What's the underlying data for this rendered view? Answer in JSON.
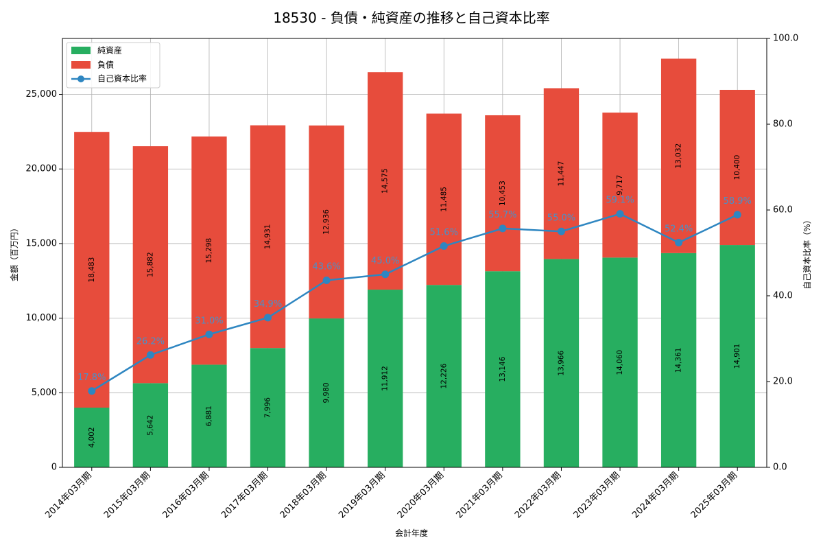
{
  "chart_data": {
    "type": "bar",
    "title": "18530 - 負債・純資産の推移と自己資本比率",
    "xlabel": "会計年度",
    "ylabel": "金額（百万円）",
    "y2label": "自己資本比率（%）",
    "ylim": [
      0,
      28750
    ],
    "y2lim": [
      0,
      100
    ],
    "yticks": [
      "0",
      "5,000",
      "10,000",
      "15,000",
      "20,000",
      "25,000"
    ],
    "y2ticks": [
      "0.0",
      "20.0",
      "40.0",
      "60.0",
      "80.0",
      "100.0"
    ],
    "grid": true,
    "legend_position": "top-left",
    "categories": [
      "2014年03月期",
      "2015年03月期",
      "2016年03月期",
      "2017年03月期",
      "2018年03月期",
      "2019年03月期",
      "2020年03月期",
      "2021年03月期",
      "2022年03月期",
      "2023年03月期",
      "2024年03月期",
      "2025年03月期"
    ],
    "series": [
      {
        "name": "純資産",
        "kind": "bar",
        "color": "#27ae60",
        "values": [
          4002,
          5642,
          6881,
          7996,
          9980,
          11912,
          12226,
          13146,
          13966,
          14060,
          14361,
          14901
        ],
        "labels": [
          "4,002",
          "5,642",
          "6,881",
          "7,996",
          "9,980",
          "11,912",
          "12,226",
          "13,146",
          "13,966",
          "14,060",
          "14,361",
          "14,901"
        ]
      },
      {
        "name": "負債",
        "kind": "bar",
        "color": "#e74c3c",
        "values": [
          18483,
          15882,
          15298,
          14931,
          12936,
          14575,
          11485,
          10453,
          11447,
          9717,
          13032,
          10400
        ],
        "labels": [
          "18,483",
          "15,882",
          "15,298",
          "14,931",
          "12,936",
          "14,575",
          "11,485",
          "10,453",
          "11,447",
          "9,717",
          "13,032",
          "10,400"
        ]
      },
      {
        "name": "自己資本比率",
        "kind": "line",
        "axis": "right",
        "color": "#2e86c1",
        "values": [
          17.8,
          26.2,
          31.0,
          34.9,
          43.6,
          45.0,
          51.6,
          55.7,
          55.0,
          59.1,
          52.4,
          58.9
        ],
        "labels": [
          "17.8%",
          "26.2%",
          "31.0%",
          "34.9%",
          "43.6%",
          "45.0%",
          "51.6%",
          "55.7%",
          "55.0%",
          "59.1%",
          "52.4%",
          "58.9%"
        ]
      }
    ]
  }
}
